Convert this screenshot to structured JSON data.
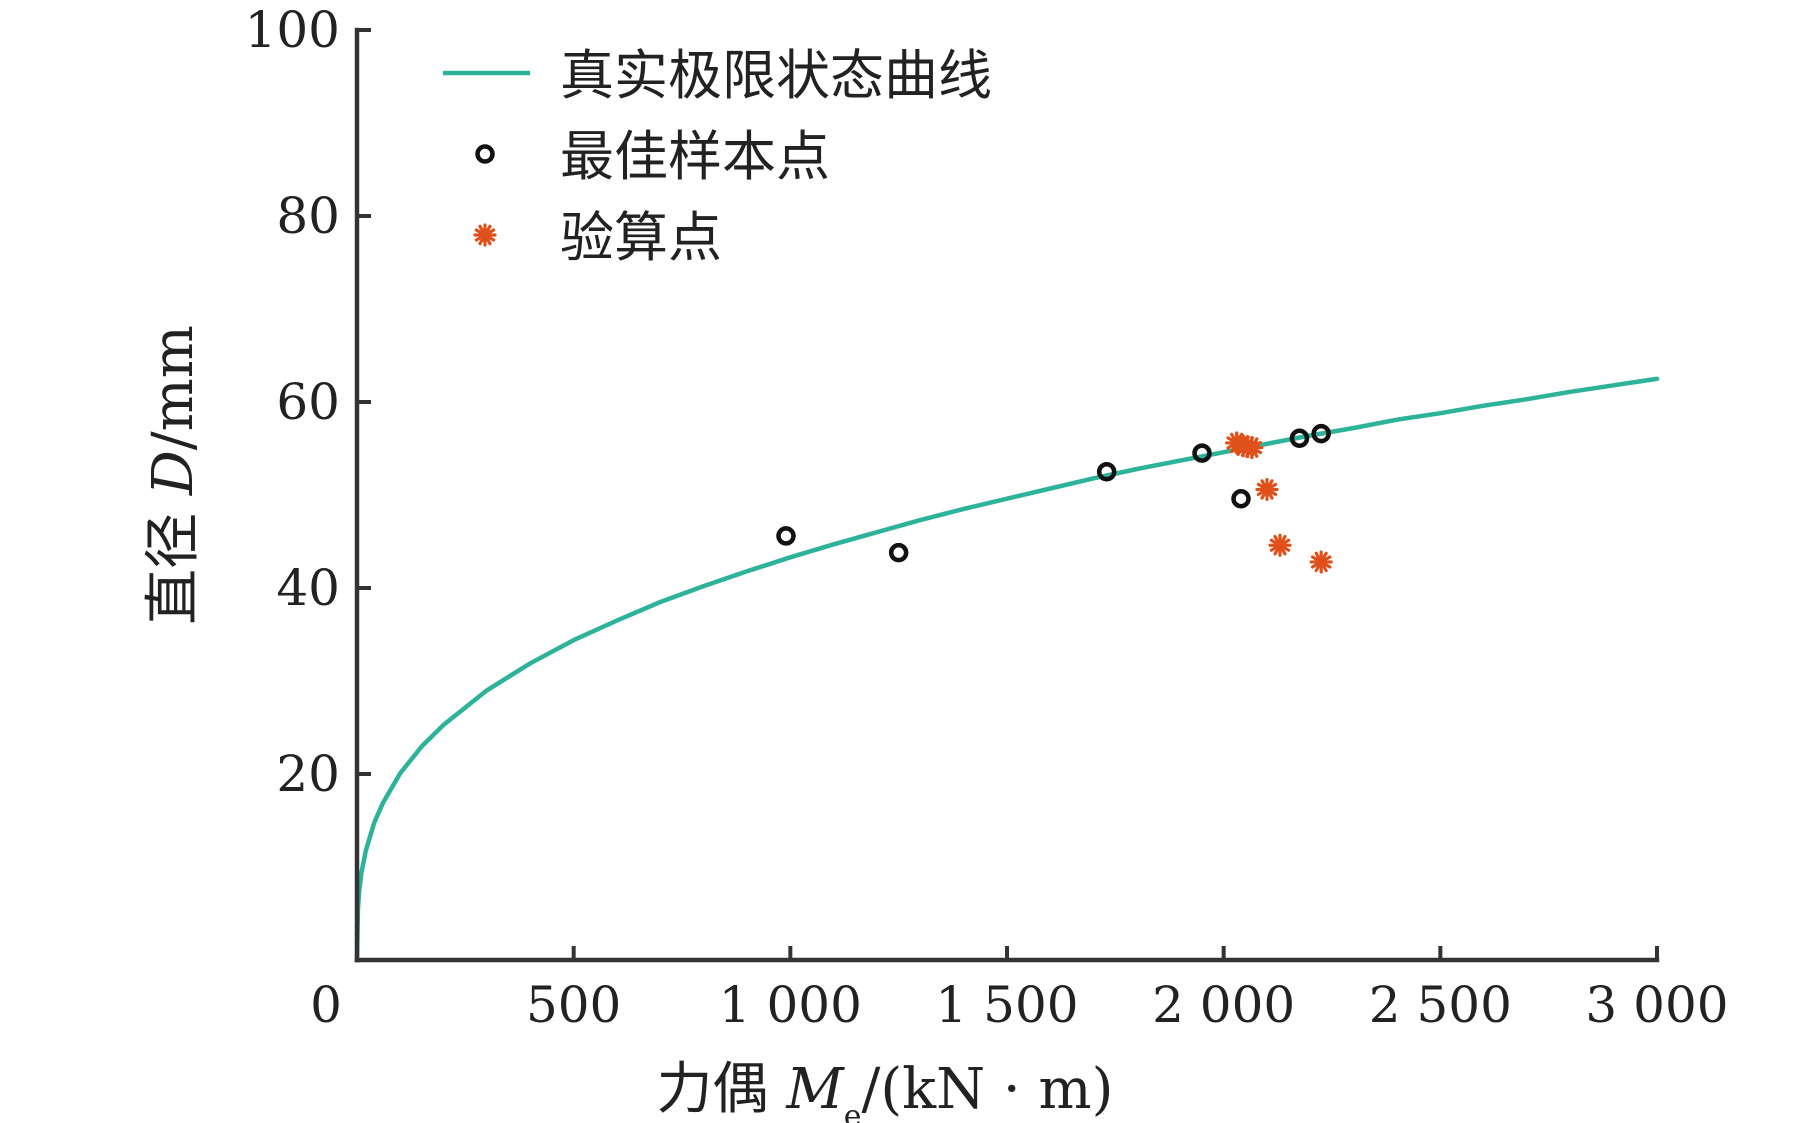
{
  "chart_data": {
    "type": "scatter",
    "title": "",
    "xlabel": {
      "prefix": "力偶 ",
      "var": "M",
      "sub": "e",
      "suffix": "/(kN · m)"
    },
    "ylabel": {
      "prefix": "直径 ",
      "var": "D",
      "suffix": "/mm"
    },
    "xlim": [
      0,
      3000
    ],
    "ylim": [
      0,
      100
    ],
    "x_ticks": [
      0,
      500,
      1000,
      1500,
      2000,
      2500,
      3000
    ],
    "x_tick_labels": [
      "0",
      "500",
      "1 000",
      "1 500",
      "2 000",
      "2 500",
      "3 000"
    ],
    "y_ticks": [
      20,
      40,
      60,
      80,
      100
    ],
    "y_tick_labels": [
      "20",
      "40",
      "60",
      "80",
      "100"
    ],
    "grid": false,
    "legend_position": "top-left",
    "series": [
      {
        "name": "真实极限状态曲线",
        "kind": "line",
        "color": "#2db39a",
        "x": [
          0,
          2,
          5,
          10,
          20,
          40,
          60,
          100,
          150,
          200,
          300,
          400,
          500,
          600,
          700,
          800,
          900,
          1000,
          1100,
          1200,
          1300,
          1400,
          1500,
          1600,
          1700,
          1800,
          1900,
          2000,
          2100,
          2200,
          2300,
          2400,
          2500,
          2600,
          2700,
          2800,
          2900,
          3000
        ],
        "y": [
          0,
          5.4,
          7.4,
          9.3,
          11.7,
          14.8,
          16.9,
          20.1,
          23.0,
          25.3,
          29.0,
          31.9,
          34.4,
          36.5,
          38.5,
          40.2,
          41.8,
          43.3,
          44.7,
          46.0,
          47.3,
          48.5,
          49.6,
          50.7,
          51.8,
          52.8,
          53.7,
          54.6,
          55.5,
          56.4,
          57.2,
          58.1,
          58.8,
          59.6,
          60.3,
          61.1,
          61.8,
          62.5
        ]
      },
      {
        "name": "最佳样本点",
        "kind": "scatter",
        "marker": "circle",
        "color": "#111111",
        "x": [
          990,
          1250,
          1730,
          1950,
          2040,
          2175,
          2225
        ],
        "y": [
          45.6,
          43.8,
          52.5,
          54.5,
          49.6,
          56.1,
          56.6
        ]
      },
      {
        "name": "验算点",
        "kind": "scatter",
        "marker": "asterisk",
        "color": "#e0501b",
        "x": [
          2030,
          2045,
          2055,
          2065,
          2100,
          2130,
          2225
        ],
        "y": [
          55.6,
          55.3,
          55.2,
          55.1,
          50.6,
          44.6,
          42.8
        ]
      }
    ]
  }
}
